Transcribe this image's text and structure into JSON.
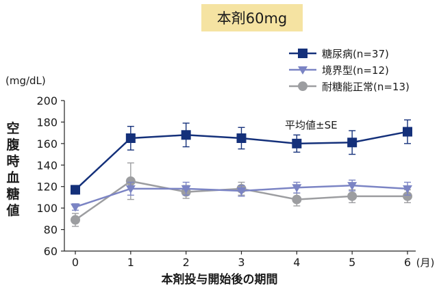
{
  "title": "本剤60mg",
  "unit_label": "(mg/dL)",
  "note": "平均値±SE",
  "chart_data": {
    "type": "line",
    "xlabel": "本剤投与開始後の期間",
    "ylabel": "空腹時血糖値",
    "x_unit": "(月)",
    "x": [
      0,
      1,
      2,
      3,
      4,
      5,
      6
    ],
    "ylim": [
      60,
      200
    ],
    "yticks": [
      60,
      80,
      100,
      120,
      140,
      160,
      180,
      200
    ],
    "legend_position": "top-right",
    "grid": false,
    "series": [
      {
        "name": "糖尿病(n=37)",
        "marker": "square",
        "color": "#14307a",
        "values": [
          117,
          165,
          168,
          165,
          160,
          161,
          171
        ],
        "se": [
          4,
          11,
          11,
          10,
          8,
          11,
          11
        ]
      },
      {
        "name": "境界型(n=12)",
        "marker": "triangle-down",
        "color": "#7b84c4",
        "values": [
          101,
          118,
          118,
          116,
          119,
          121,
          118
        ],
        "se": [
          3,
          6,
          6,
          5,
          5,
          5,
          6
        ]
      },
      {
        "name": "耐糖能正常(n=13)",
        "marker": "circle",
        "color": "#9c9da0",
        "values": [
          89,
          125,
          115,
          118,
          108,
          111,
          111
        ],
        "se": [
          6,
          17,
          6,
          6,
          6,
          6,
          6
        ]
      }
    ]
  }
}
